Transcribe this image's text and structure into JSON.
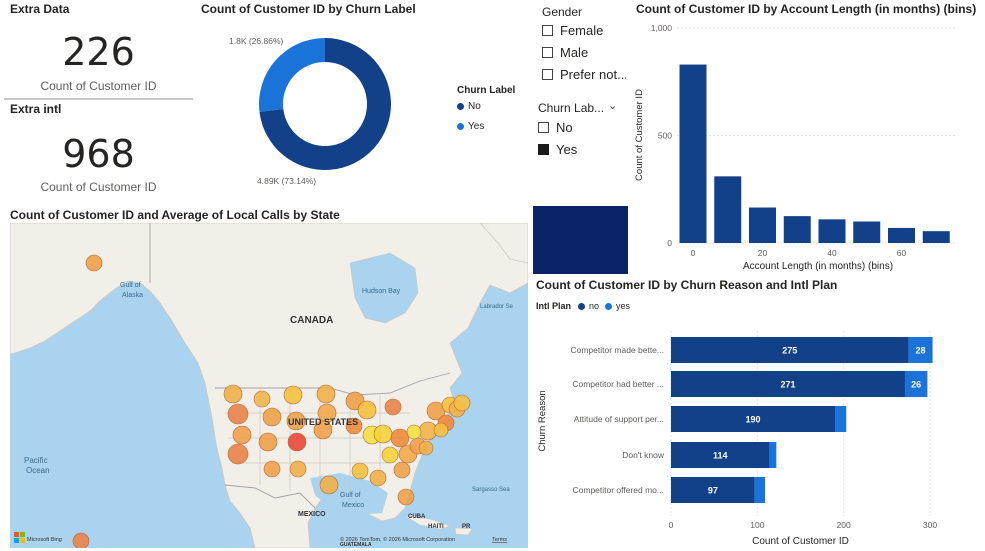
{
  "kpi_extra_data": {
    "title": "Extra Data",
    "value": "226",
    "label": "Count of Customer ID"
  },
  "kpi_extra_intl": {
    "title": "Extra intl",
    "value": "968",
    "label": "Count of Customer ID"
  },
  "donut": {
    "title": "Count of Customer ID by Churn Label",
    "legend_title": "Churn Label",
    "slices": [
      {
        "name": "No",
        "label": "4.89K (73.14%)",
        "pct": 73.14,
        "color": "#12418a"
      },
      {
        "name": "Yes",
        "label": "1.8K (26.86%)",
        "pct": 26.86,
        "color": "#1a73d9"
      }
    ]
  },
  "gender_slicer": {
    "title": "Gender",
    "items": [
      {
        "label": "Female",
        "checked": false
      },
      {
        "label": "Male",
        "checked": false
      },
      {
        "label": "Prefer not...",
        "checked": false
      }
    ]
  },
  "churn_slicer": {
    "title": "Churn Lab...",
    "items": [
      {
        "label": "No",
        "checked": false
      },
      {
        "label": "Yes",
        "checked": true
      }
    ]
  },
  "account_chart": {
    "title": "Count of Customer ID by Account Length (in months) (bins)",
    "xlabel": "Account Length (in months) (bins)",
    "ylabel": "Count of Customer ID",
    "yticks": [
      "0",
      "500",
      "1,000"
    ],
    "xticks": [
      "0",
      "20",
      "40",
      "60"
    ],
    "color": "#12418a"
  },
  "map": {
    "title": "Count of Customer ID and Average of Local Calls by State",
    "labels": {
      "canada": "CANADA",
      "us": "UNITED STATES",
      "mexico": "MEXICO",
      "gulf_alaska": "Gulf of Alaska",
      "hudson": "Hudson Bay",
      "labrador": "Labrador Se",
      "pacific": "Pacific Ocean",
      "gulf_mexico": "Gulf of Mexico",
      "sargasso": "Sargasso Sea",
      "cuba": "CUBA",
      "haiti": "HAITI",
      "pr": "PR",
      "guatemala": "GUATEMALA"
    },
    "attribution": "© 2026 TomTom, © 2026 Microsoft Corporation",
    "terms": "Terms",
    "brand": "Microsoft Bing"
  },
  "churn_reason_chart": {
    "title": "Count of Customer ID by Churn Reason and Intl Plan",
    "legend_title": "Intl Plan",
    "legend": [
      {
        "name": "no",
        "color": "#12418a"
      },
      {
        "name": "yes",
        "color": "#1a73d9"
      }
    ],
    "ylabel": "Churn Reason",
    "xlabel": "Count of Customer ID",
    "xticks": [
      "0",
      "100",
      "200",
      "300"
    ]
  },
  "chart_data": [
    {
      "type": "pie",
      "title": "Count of Customer ID by Churn Label",
      "categories": [
        "No",
        "Yes"
      ],
      "values": [
        4890,
        1800
      ]
    },
    {
      "type": "bar",
      "title": "Count of Customer ID by Account Length (in months) (bins)",
      "xlabel": "Account Length (in months) (bins)",
      "ylabel": "Count of Customer ID",
      "categories": [
        0,
        10,
        20,
        30,
        40,
        50,
        60,
        70
      ],
      "values": [
        830,
        310,
        165,
        125,
        110,
        100,
        70,
        55
      ],
      "ylim": [
        0,
        1000
      ]
    },
    {
      "type": "bar",
      "orientation": "horizontal",
      "stacked": true,
      "title": "Count of Customer ID by Churn Reason and Intl Plan",
      "xlabel": "Count of Customer ID",
      "ylabel": "Churn Reason",
      "categories": [
        "Competitor made bette...",
        "Competitor had better ...",
        "Attitude of support per...",
        "Don't know",
        "Competitor offered mo..."
      ],
      "series": [
        {
          "name": "no",
          "values": [
            275,
            271,
            190,
            114,
            97
          ]
        },
        {
          "name": "yes",
          "values": [
            28,
            26,
            13,
            8,
            12
          ]
        }
      ],
      "xlim": [
        0,
        300
      ]
    }
  ]
}
